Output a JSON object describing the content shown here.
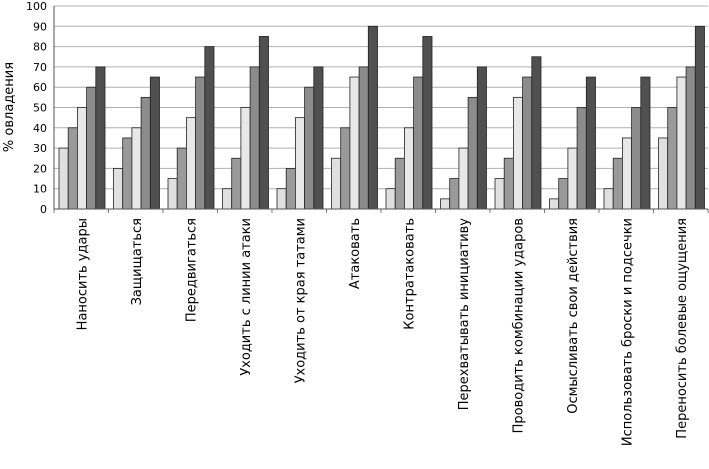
{
  "chart_data": {
    "type": "bar",
    "title": "",
    "xlabel": "",
    "ylabel": "% овладения",
    "ylim": [
      0,
      100
    ],
    "yticks": [
      0,
      10,
      20,
      30,
      40,
      50,
      60,
      70,
      80,
      90,
      100
    ],
    "grid": true,
    "legend": "none",
    "categories": [
      "Наносить удары",
      "Защищаться",
      "Передвигаться",
      "Уходить с линии атаки",
      "Уходить от края татами",
      "Атаковать",
      "Контратаковать",
      "Перехватывать инициативу",
      "Проводить комбинации ударов",
      "Осмысливать свои действия",
      "Использовать броски и подсечки",
      "Переносить болевые ощущения"
    ],
    "series": [
      {
        "color": "#e0e0e0",
        "values": [
          30,
          20,
          15,
          10,
          10,
          25,
          10,
          5,
          15,
          5,
          10,
          35
        ]
      },
      {
        "color": "#9a9a9a",
        "values": [
          40,
          35,
          30,
          25,
          20,
          40,
          25,
          15,
          25,
          15,
          25,
          50
        ]
      },
      {
        "color": "#e8e8e8",
        "values": [
          50,
          40,
          45,
          50,
          45,
          65,
          40,
          30,
          55,
          30,
          35,
          65
        ]
      },
      {
        "color": "#8c8c8c",
        "values": [
          60,
          55,
          65,
          70,
          60,
          70,
          65,
          55,
          65,
          50,
          50,
          70
        ]
      },
      {
        "color": "#505050",
        "values": [
          70,
          65,
          80,
          85,
          70,
          90,
          85,
          70,
          75,
          65,
          65,
          90
        ]
      }
    ]
  }
}
